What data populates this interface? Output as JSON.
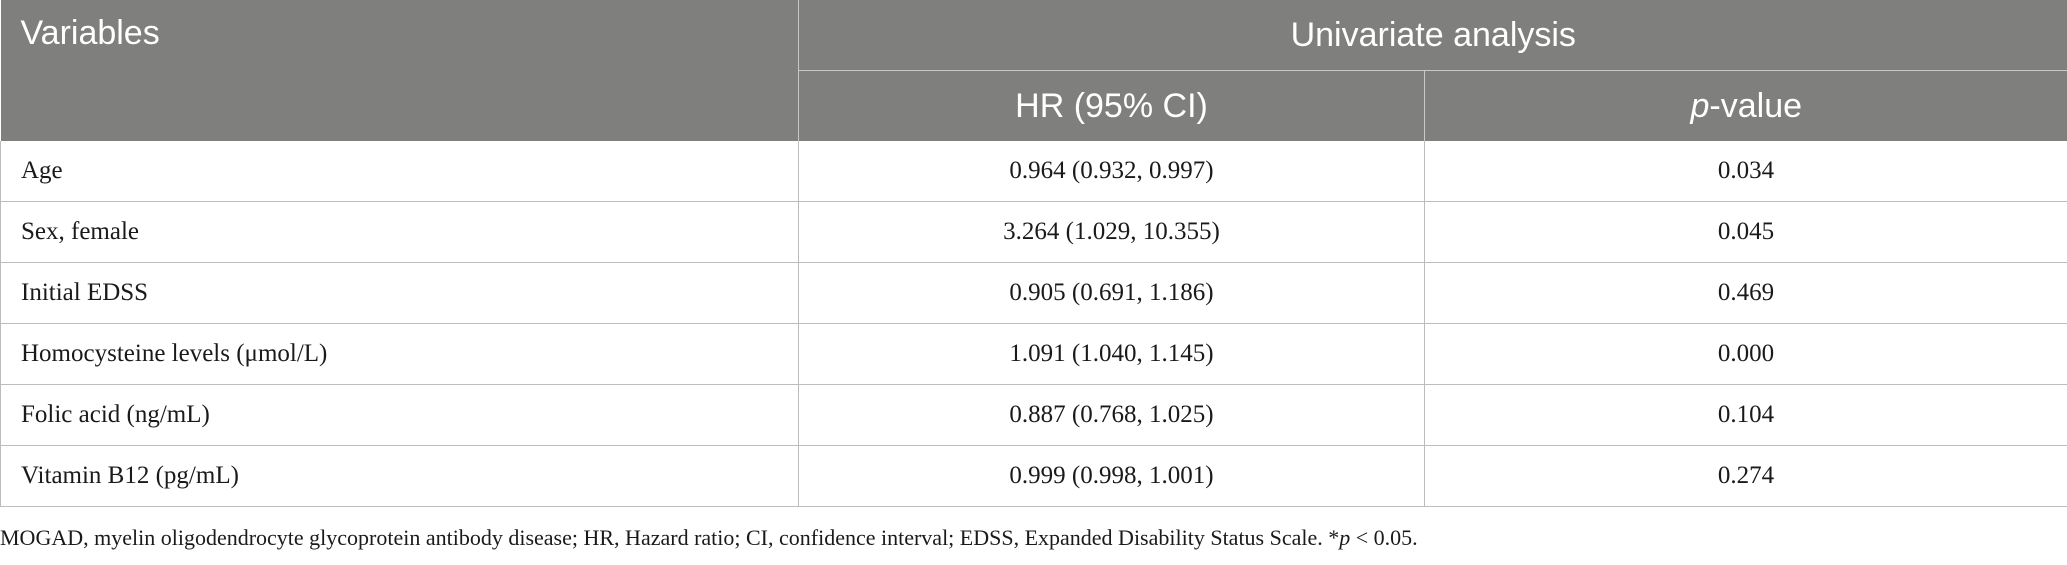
{
  "header": {
    "variables": "Variables",
    "group": "Univariate analysis",
    "hr_col": "HR (95% CI)",
    "p_italic": "p",
    "p_suffix": "-value"
  },
  "rows": [
    {
      "variable": "Age",
      "hr": "0.964 (0.932, 0.997)",
      "p": "0.034"
    },
    {
      "variable": "Sex, female",
      "hr": "3.264 (1.029, 10.355)",
      "p": "0.045"
    },
    {
      "variable": "Initial EDSS",
      "hr": "0.905 (0.691, 1.186)",
      "p": "0.469"
    },
    {
      "variable": "Homocysteine levels (μmol/L)",
      "hr": "1.091 (1.040, 1.145)",
      "p": "0.000"
    },
    {
      "variable": "Folic acid (ng/mL)",
      "hr": "0.887 (0.768, 1.025)",
      "p": "0.104"
    },
    {
      "variable": "Vitamin B12 (pg/mL)",
      "hr": "0.999 (0.998, 1.001)",
      "p": "0.274"
    }
  ],
  "footnote": {
    "text": "MOGAD, myelin oligodendrocyte glycoprotein antibody disease; HR, Hazard ratio; CI, confidence interval; EDSS, Expanded Disability Status Scale. *",
    "p_italic": "p",
    "tail": " < 0.05."
  }
}
